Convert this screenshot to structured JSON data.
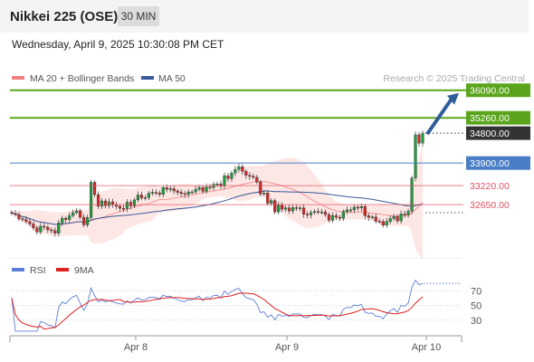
{
  "header": {
    "instrument": "Nikkei 225 (OSE)",
    "timeframe": "30 MIN",
    "datetime": "Wednesday, April 9, 2025 10:30:08 PM CET"
  },
  "colors": {
    "resistance": "#5aa51c",
    "current": "#333333",
    "pivot": "#4a7ec4",
    "support": "#e05060",
    "ma20": "#f08080",
    "ma50": "#3a5a9a",
    "band": "#fde3e1",
    "rsi": "#5b7fd6",
    "rsi_ma": "#e02020",
    "arrow": "#2f5d9a"
  },
  "chart_data": [
    {
      "type": "candlestick",
      "title": "Nikkei 225 (OSE)",
      "legend": [
        "MA 20 + Bollinger Bands",
        "MA 50"
      ],
      "legend_position": "top-left",
      "attribution": "Research © 2025 Trading Central",
      "x_ticks": [
        "Apr 8",
        "Apr 9",
        "Apr 10"
      ],
      "ylim": [
        31100,
        36300
      ],
      "levels": [
        {
          "value": 36090,
          "label": "36090.00",
          "role": "resistance"
        },
        {
          "value": 35260,
          "label": "35260.00",
          "role": "resistance"
        },
        {
          "value": 34800,
          "label": "34800.00",
          "role": "current"
        },
        {
          "value": 33900,
          "label": "33900.00",
          "role": "pivot"
        },
        {
          "value": 33220,
          "label": "33220.00",
          "role": "support"
        },
        {
          "value": 32650,
          "label": "32650.00",
          "role": "support"
        }
      ],
      "candles_close": [
        32390,
        32350,
        32220,
        32200,
        32140,
        32070,
        31950,
        31830,
        32000,
        31970,
        31890,
        31870,
        31790,
        32100,
        32240,
        32200,
        32320,
        32410,
        32460,
        32270,
        32040,
        32260,
        33320,
        32950,
        32600,
        32760,
        32620,
        32730,
        32650,
        32600,
        32540,
        32530,
        32720,
        32610,
        32790,
        32940,
        32850,
        32860,
        32990,
        33020,
        33000,
        32960,
        33160,
        33110,
        33130,
        33060,
        33020,
        32980,
        32960,
        33030,
        33030,
        33110,
        33160,
        33050,
        33180,
        33160,
        33260,
        33270,
        33210,
        33520,
        33430,
        33600,
        33710,
        33790,
        33650,
        33530,
        33500,
        33470,
        33330,
        32970,
        33000,
        32690,
        32770,
        32430,
        32640,
        32510,
        32550,
        32460,
        32560,
        32550,
        32550,
        32360,
        32340,
        32410,
        32440,
        32420,
        32430,
        32350,
        32180,
        32320,
        32270,
        32240,
        32440,
        32490,
        32490,
        32570,
        32550,
        32590,
        32320,
        32270,
        32280,
        32150,
        32140,
        32030,
        32140,
        32230,
        32290,
        32160,
        32370,
        32340,
        32450,
        33450,
        34750,
        34500,
        34800
      ]
    },
    {
      "type": "line",
      "title": "RSI",
      "legend": [
        "RSI",
        "9MA"
      ],
      "legend_position": "top-left",
      "ylim": [
        10,
        90
      ],
      "y_ticks": [
        30,
        50,
        70
      ],
      "grid": "dotted"
    }
  ]
}
